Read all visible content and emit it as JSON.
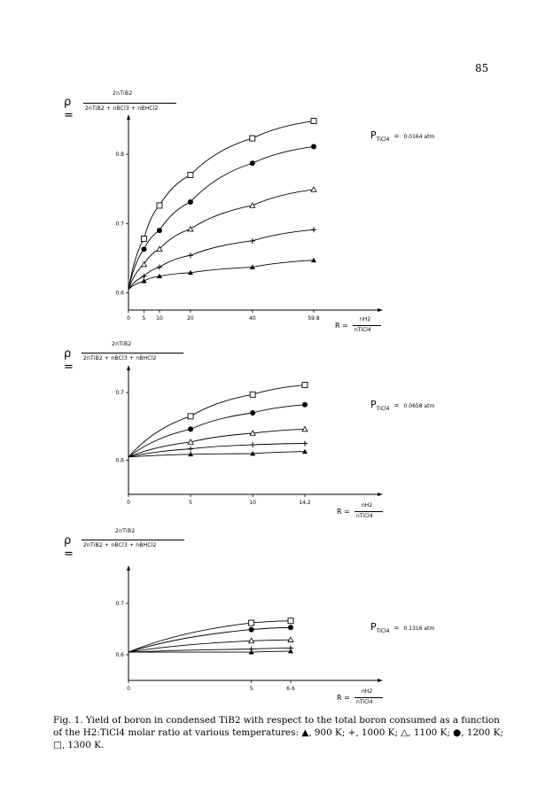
{
  "page_number": "85",
  "formula": {
    "lhs": "ρ =",
    "numerator": "2nTiB2",
    "denominator": "2nTiB2 + nBCl3 + nBHCl2"
  },
  "x_label": {
    "prefix": "R =",
    "numerator": "nH2",
    "denominator": "nTiCl4"
  },
  "pressure_symbol": "P",
  "pressure_subscript": "TiCl4",
  "pressure_equals": "=",
  "caption": "Fig. 1. Yield of boron in condensed TiB2 with respect to the total boron consumed as a function of the H2:TiCl4 molar ratio at various temperatures: ▲, 900 K; +, 1000 K; △, 1100 K; ●, 1200 K; □, 1300 K.",
  "chart_data": [
    {
      "type": "line",
      "pressure_value": "0.0164 atm",
      "x_ticks": [
        0,
        5,
        10,
        20,
        40,
        59.8
      ],
      "x_tick_labels": [
        "0",
        "5",
        "10",
        "20",
        "40",
        "59.8"
      ],
      "y_ticks": [
        0.6,
        0.7,
        0.8
      ],
      "y_tick_labels": [
        "0.6",
        "0.7",
        "0.8"
      ],
      "xlim": [
        0,
        63
      ],
      "ylim": [
        0.575,
        0.85
      ],
      "series": [
        {
          "marker": "open-square",
          "x": [
            5,
            10,
            20,
            40,
            59.8
          ],
          "y": [
            0.678,
            0.726,
            0.77,
            0.823,
            0.848
          ]
        },
        {
          "marker": "filled-circle",
          "x": [
            5,
            10,
            20,
            40,
            59.8
          ],
          "y": [
            0.663,
            0.69,
            0.731,
            0.787,
            0.811
          ]
        },
        {
          "marker": "open-triangle",
          "x": [
            5,
            10,
            20,
            40,
            59.8
          ],
          "y": [
            0.641,
            0.663,
            0.692,
            0.726,
            0.749
          ]
        },
        {
          "marker": "plus",
          "x": [
            5,
            10,
            20,
            40,
            59.8
          ],
          "y": [
            0.624,
            0.637,
            0.654,
            0.675,
            0.691
          ]
        },
        {
          "marker": "filled-triangle",
          "x": [
            5,
            10,
            20,
            40,
            59.8
          ],
          "y": [
            0.617,
            0.624,
            0.629,
            0.637,
            0.647
          ]
        }
      ]
    },
    {
      "type": "line",
      "pressure_value": "0.0658 atm",
      "x_ticks": [
        0,
        5,
        10,
        14.2
      ],
      "x_tick_labels": [
        "0",
        "5",
        "10",
        "14.2"
      ],
      "y_ticks": [
        0.6,
        0.7
      ],
      "y_tick_labels": [
        "0.6",
        "0.7"
      ],
      "xlim": [
        0,
        15.5
      ],
      "ylim": [
        0.55,
        0.73
      ],
      "series": [
        {
          "marker": "open-square",
          "x": [
            5,
            10,
            14.2
          ],
          "y": [
            0.665,
            0.697,
            0.711
          ]
        },
        {
          "marker": "filled-circle",
          "x": [
            5,
            10,
            14.2
          ],
          "y": [
            0.646,
            0.67,
            0.682
          ]
        },
        {
          "marker": "open-triangle",
          "x": [
            5,
            10,
            14.2
          ],
          "y": [
            0.627,
            0.64,
            0.646
          ]
        },
        {
          "marker": "plus",
          "x": [
            5,
            10,
            14.2
          ],
          "y": [
            0.617,
            0.623,
            0.625
          ]
        },
        {
          "marker": "filled-triangle",
          "x": [
            5,
            10,
            14.2
          ],
          "y": [
            0.609,
            0.61,
            0.613
          ]
        }
      ]
    },
    {
      "type": "line",
      "pressure_value": "0.1316 atm",
      "x_ticks": [
        0,
        5,
        6.6
      ],
      "x_tick_labels": [
        "0",
        "5",
        "6.6"
      ],
      "y_ticks": [
        0.6,
        0.7
      ],
      "y_tick_labels": [
        "0,6",
        "0.7"
      ],
      "xlim": [
        0,
        8.5
      ],
      "ylim": [
        0.55,
        0.75
      ],
      "series": [
        {
          "marker": "open-square",
          "x": [
            5,
            6.6
          ],
          "y": [
            0.662,
            0.666
          ]
        },
        {
          "marker": "filled-circle",
          "x": [
            5,
            6.6
          ],
          "y": [
            0.649,
            0.653
          ]
        },
        {
          "marker": "open-triangle",
          "x": [
            5,
            6.6
          ],
          "y": [
            0.627,
            0.629
          ]
        },
        {
          "marker": "plus",
          "x": [
            5,
            6.6
          ],
          "y": [
            0.611,
            0.613
          ]
        },
        {
          "marker": "filled-triangle",
          "x": [
            5,
            6.6
          ],
          "y": [
            0.605,
            0.607
          ]
        }
      ]
    }
  ]
}
